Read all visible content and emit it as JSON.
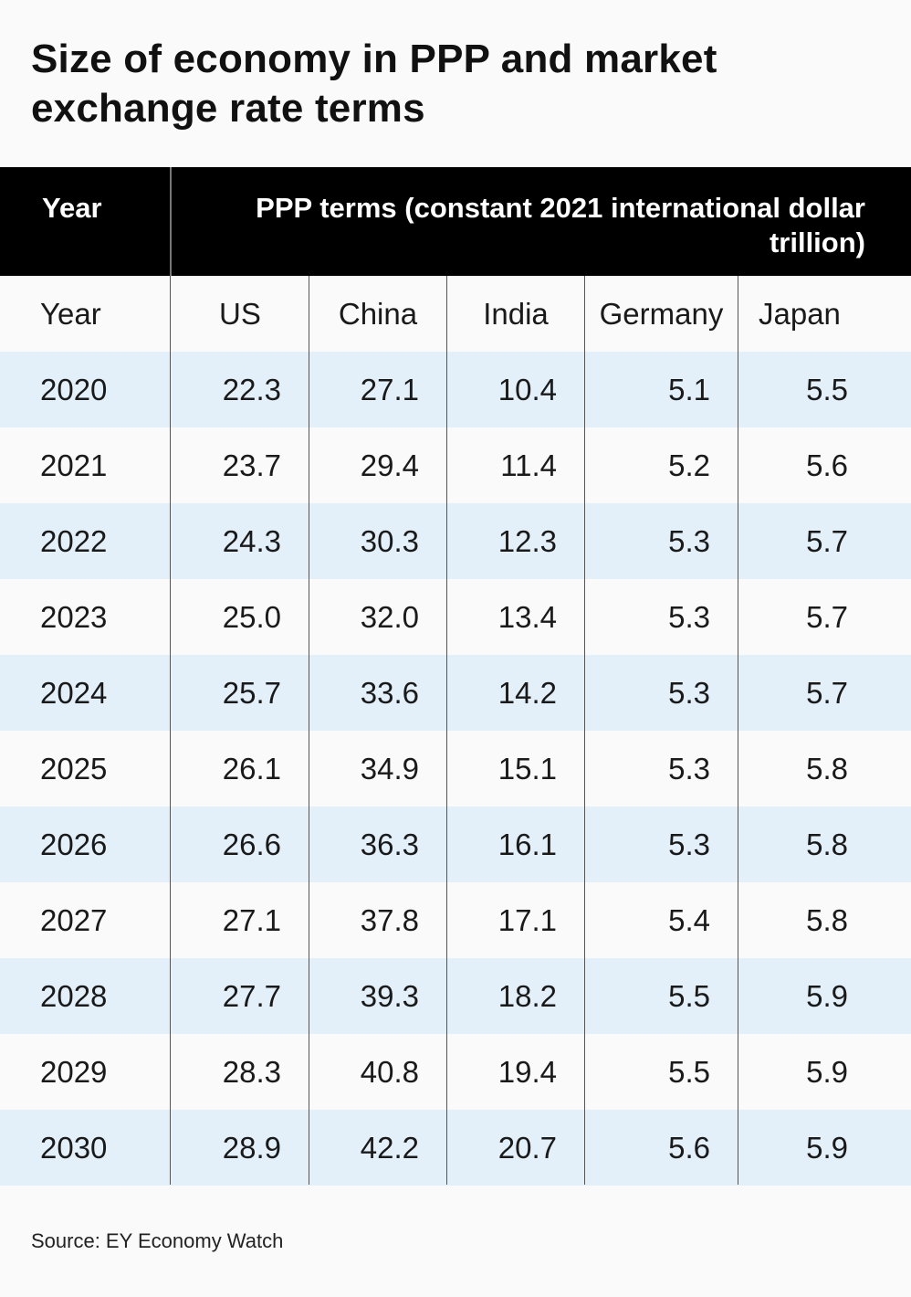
{
  "title": "Size of economy in PPP and market exchange rate terms",
  "header": {
    "year_label": "Year",
    "ppp_label": "PPP terms (constant 2021 international dollar trillion)"
  },
  "columns": [
    "Year",
    "US",
    "China",
    "India",
    "Germany",
    "Japan"
  ],
  "rows": [
    [
      "2020",
      "22.3",
      "27.1",
      "10.4",
      "5.1",
      "5.5"
    ],
    [
      "2021",
      "23.7",
      "29.4",
      "11.4",
      "5.2",
      "5.6"
    ],
    [
      "2022",
      "24.3",
      "30.3",
      "12.3",
      "5.3",
      "5.7"
    ],
    [
      "2023",
      "25.0",
      "32.0",
      "13.4",
      "5.3",
      "5.7"
    ],
    [
      "2024",
      "25.7",
      "33.6",
      "14.2",
      "5.3",
      "5.7"
    ],
    [
      "2025",
      "26.1",
      "34.9",
      "15.1",
      "5.3",
      "5.8"
    ],
    [
      "2026",
      "26.6",
      "36.3",
      "16.1",
      "5.3",
      "5.8"
    ],
    [
      "2027",
      "27.1",
      "37.8",
      "17.1",
      "5.4",
      "5.8"
    ],
    [
      "2028",
      "27.7",
      "39.3",
      "18.2",
      "5.5",
      "5.9"
    ],
    [
      "2029",
      "28.3",
      "40.8",
      "19.4",
      "5.5",
      "5.9"
    ],
    [
      "2030",
      "28.9",
      "42.2",
      "20.7",
      "5.6",
      "5.9"
    ]
  ],
  "source": "Source: EY Economy Watch",
  "colors": {
    "header_bg": "#000000",
    "alt_row": "#e3f0fa",
    "background": "#fafafa"
  },
  "chart_data": {
    "type": "table",
    "title": "Size of economy in PPP and market exchange rate terms",
    "group_header": "PPP terms (constant 2021 international dollar trillion)",
    "categories": [
      "2020",
      "2021",
      "2022",
      "2023",
      "2024",
      "2025",
      "2026",
      "2027",
      "2028",
      "2029",
      "2030"
    ],
    "series": [
      {
        "name": "US",
        "values": [
          22.3,
          23.7,
          24.3,
          25.0,
          25.7,
          26.1,
          26.6,
          27.1,
          27.7,
          28.3,
          28.9
        ]
      },
      {
        "name": "China",
        "values": [
          27.1,
          29.4,
          30.3,
          32.0,
          33.6,
          34.9,
          36.3,
          37.8,
          39.3,
          40.8,
          42.2
        ]
      },
      {
        "name": "India",
        "values": [
          10.4,
          11.4,
          12.3,
          13.4,
          14.2,
          15.1,
          16.1,
          17.1,
          18.2,
          19.4,
          20.7
        ]
      },
      {
        "name": "Germany",
        "values": [
          5.1,
          5.2,
          5.3,
          5.3,
          5.3,
          5.3,
          5.3,
          5.4,
          5.5,
          5.5,
          5.6
        ]
      },
      {
        "name": "Japan",
        "values": [
          5.5,
          5.6,
          5.7,
          5.7,
          5.7,
          5.8,
          5.8,
          5.8,
          5.9,
          5.9,
          5.9
        ]
      }
    ]
  }
}
